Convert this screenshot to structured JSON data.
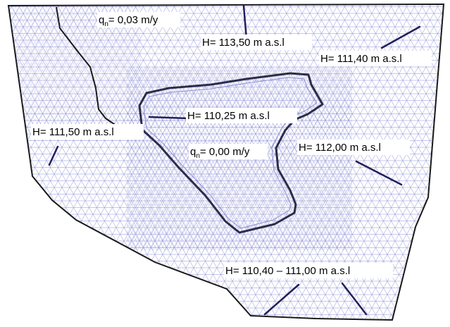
{
  "mesh": {
    "line_color": "#8c8fd4",
    "boundary_color": "#1a1a1a",
    "boundary_line_color": "#1f1f5c"
  },
  "labels": {
    "flux_outer": {
      "prefix": "q",
      "sub": "n",
      "suffix": "= 0,03 m/y"
    },
    "h_top": "H= 113,50 m a.s.l",
    "h_upper_right": "H= 111,40 m a.s.l",
    "h_lake": "H= 110,25 m a.s.l",
    "h_left": "H= 111,50 m a.s.l",
    "flux_inner": {
      "prefix": "q",
      "sub": "n",
      "suffix": "= 0,00 m/y"
    },
    "h_right": "H= 112,00 m a.s.l",
    "h_bottom": "H= 110,40 – 111,00 m a.s.l"
  }
}
